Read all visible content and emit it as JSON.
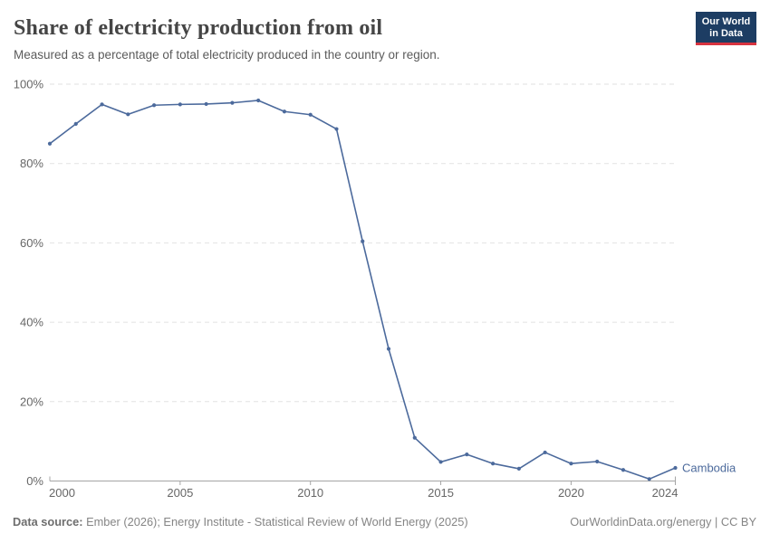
{
  "header": {
    "title": "Share of electricity production from oil",
    "subtitle": "Measured as a percentage of total electricity produced in the country or region.",
    "logo": {
      "line1": "Our World",
      "line2": "in Data"
    }
  },
  "chart_data": {
    "type": "line",
    "title": "Share of electricity production from oil",
    "xlabel": "",
    "ylabel": "",
    "xlim": [
      2000,
      2024
    ],
    "ylim": [
      0,
      100
    ],
    "x_ticks": [
      2000,
      2005,
      2010,
      2015,
      2020,
      2024
    ],
    "y_ticks": [
      0,
      20,
      40,
      60,
      80,
      100
    ],
    "y_tick_suffix": "%",
    "grid": "horizontal-dashed",
    "legend_position": "end-of-line-label",
    "x": [
      2000,
      2001,
      2002,
      2003,
      2004,
      2005,
      2006,
      2007,
      2008,
      2009,
      2010,
      2011,
      2012,
      2013,
      2014,
      2015,
      2016,
      2017,
      2018,
      2019,
      2020,
      2021,
      2022,
      2023,
      2024
    ],
    "series": [
      {
        "name": "Cambodia",
        "color": "#4c6a9c",
        "values": [
          85.0,
          90.0,
          94.9,
          92.4,
          94.7,
          94.9,
          95.0,
          95.3,
          95.9,
          93.1,
          92.3,
          88.7,
          60.4,
          33.3,
          10.9,
          4.8,
          6.7,
          4.4,
          3.1,
          7.2,
          4.4,
          4.9,
          2.8,
          0.5,
          3.3
        ]
      }
    ]
  },
  "footer": {
    "datasource_label": "Data source:",
    "datasource_text": " Ember (2026); Energy Institute - Statistical Review of World Energy (2025)",
    "credit": "OurWorldinData.org/energy | CC BY"
  },
  "colors": {
    "line": "#4c6a9c",
    "grid": "#e2e2e2",
    "axis": "#a5a5a5",
    "tick_label": "#666666",
    "entity_label": "#4c6a9c",
    "logo_bg": "#1d3d63",
    "logo_accent": "#d7333f"
  }
}
